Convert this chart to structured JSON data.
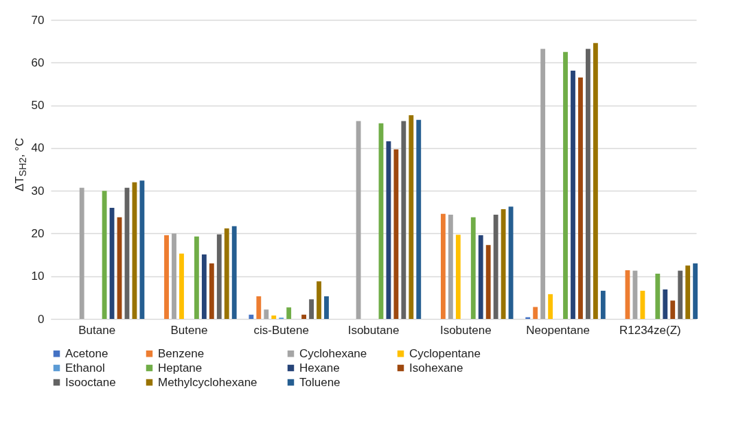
{
  "chart_data": {
    "type": "bar",
    "ylabel": "ΔT$_{SH2}$, °C",
    "categories": [
      "Butane",
      "Butene",
      "cis-Butene",
      "Isobutane",
      "Isobutene",
      "Neopentane",
      "R1234ze(Z)"
    ],
    "series": [
      {
        "name": "Acetone",
        "color": "#4472c4",
        "values": [
          null,
          null,
          1.0,
          null,
          null,
          0.4,
          null
        ]
      },
      {
        "name": "Benzene",
        "color": "#ed7d31",
        "values": [
          null,
          19.6,
          5.3,
          null,
          24.6,
          2.8,
          11.4
        ]
      },
      {
        "name": "Cyclohexane",
        "color": "#a5a5a5",
        "values": [
          30.7,
          20.0,
          2.2,
          46.3,
          24.4,
          63.2,
          11.3
        ]
      },
      {
        "name": "Cyclopentane",
        "color": "#ffc000",
        "values": [
          null,
          15.3,
          0.8,
          null,
          19.7,
          5.8,
          6.6
        ]
      },
      {
        "name": "Ethanol",
        "color": "#5b9bd5",
        "values": [
          null,
          null,
          0.3,
          null,
          null,
          null,
          null
        ]
      },
      {
        "name": "Heptane",
        "color": "#70ad47",
        "values": [
          30.0,
          19.3,
          2.7,
          45.8,
          23.8,
          62.5,
          10.6
        ]
      },
      {
        "name": "Hexane",
        "color": "#264478",
        "values": [
          26.0,
          15.1,
          null,
          41.6,
          19.6,
          58.1,
          6.9
        ]
      },
      {
        "name": "Isohexane",
        "color": "#9e480e",
        "values": [
          23.8,
          13.0,
          1.0,
          39.7,
          17.3,
          56.5,
          4.3
        ]
      },
      {
        "name": "Isooctane",
        "color": "#636363",
        "values": [
          30.7,
          19.8,
          4.6,
          46.3,
          24.4,
          63.2,
          11.3
        ]
      },
      {
        "name": "Methylcyclohexane",
        "color": "#997300",
        "values": [
          32.0,
          21.2,
          8.8,
          47.7,
          25.7,
          64.6,
          12.5
        ]
      },
      {
        "name": "Toluene",
        "color": "#255e91",
        "values": [
          32.4,
          21.7,
          5.3,
          46.6,
          26.3,
          6.6,
          13.0
        ]
      }
    ],
    "ylim": [
      0,
      70
    ],
    "yticks": [
      0,
      10,
      20,
      30,
      40,
      50,
      60,
      70
    ],
    "grid": "y",
    "legend": "bottom"
  }
}
